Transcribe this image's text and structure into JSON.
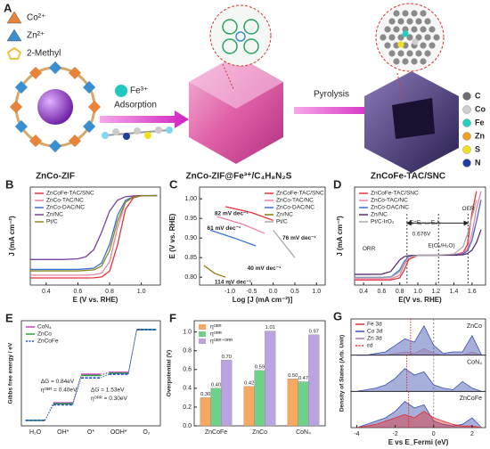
{
  "panel_a": {
    "label": "A",
    "ions": [
      {
        "name": "Co²⁺",
        "color": "#e8843a"
      },
      {
        "name": "Zn²⁺",
        "color": "#3a8fd0"
      },
      {
        "name": "2-Methyl",
        "color": "#f0c040"
      }
    ],
    "fe": "Fe³⁺",
    "steps": [
      "Adsorption",
      "Pyrolysis"
    ],
    "stages": [
      "ZnCo-ZIF",
      "ZnCo-ZIF@Fe³⁺/C₄H₈N₂S",
      "ZnCoFe-TAC/SNC"
    ],
    "elements": [
      {
        "name": "C",
        "color": "#6e6e6e"
      },
      {
        "name": "Co",
        "color": "#cfcfcf"
      },
      {
        "name": "Fe",
        "color": "#22d0c0"
      },
      {
        "name": "Zn",
        "color": "#f0a020"
      },
      {
        "name": "S",
        "color": "#f0e020"
      },
      {
        "name": "N",
        "color": "#2040a0"
      }
    ]
  },
  "chart_data": [
    {
      "type": "line",
      "label": "B",
      "x_label": "E (V vs. RHE)",
      "y_label": "J (mA cm⁻²)",
      "x": [
        0.3,
        0.5,
        0.6,
        0.65,
        0.7,
        0.75,
        0.8,
        0.85,
        0.9,
        0.95,
        1.0,
        1.1
      ],
      "xlim": [
        0.3,
        1.12
      ],
      "ylim": [
        -6.3,
        0.6
      ],
      "xticks": [
        0.4,
        0.6,
        0.8,
        {
          "value": 1.0,
          "label": "1.0"
        }
      ],
      "legend": "upper left",
      "series": [
        {
          "name": "ZnCoFe-TAC/SNC",
          "color": "#e8333a",
          "values": [
            -5.8,
            -5.8,
            -5.8,
            -5.8,
            -5.79,
            -5.73,
            -5.32,
            -3.47,
            -0.97,
            -0.15,
            -0.02,
            0
          ]
        },
        {
          "name": "ZnCo-TAC/NC",
          "color": "#f07fa0",
          "values": [
            -5.6,
            -5.6,
            -5.6,
            -5.6,
            -5.57,
            -5.45,
            -4.67,
            -2.25,
            -0.47,
            -0.07,
            -0.01,
            0
          ]
        },
        {
          "name": "ZnCo-DAC/NC",
          "color": "#3b6fd6",
          "values": [
            -5.2,
            -5.2,
            -5.19,
            -5.16,
            -5.11,
            -4.74,
            -3.44,
            -1.4,
            -0.34,
            -0.07,
            -0.01,
            0
          ]
        },
        {
          "name": "Zn/NC",
          "color": "#7a3fa0",
          "values": [
            -4.5,
            -4.5,
            -4.45,
            -4.31,
            -3.81,
            -2.57,
            -1.09,
            -0.32,
            -0.08,
            -0.02,
            0,
            0
          ]
        },
        {
          "name": "Pt/C",
          "color": "#8a8a20",
          "values": [
            -5.3,
            -5.3,
            -5.3,
            -5.27,
            -5.23,
            -4.96,
            -3.87,
            -1.8,
            -0.47,
            -0.1,
            -0.02,
            0
          ]
        }
      ]
    },
    {
      "type": "line",
      "label": "C",
      "x_label": "Log [J (mA cm⁻²)]",
      "y_label": "E (V vs. RHE)",
      "xlim": [
        -1.7,
        1.2
      ],
      "ylim": [
        0.78,
        1.03
      ],
      "xticks": [
        {
          "value": -1.0,
          "label": "-1.0"
        },
        -0.5,
        {
          "value": 0.0,
          "label": "0.0"
        },
        0.5,
        {
          "value": 1.0,
          "label": "1.0"
        }
      ],
      "yticks": [
        {
          "value": 0.8,
          "label": "0.80"
        },
        {
          "value": 0.85,
          "label": "0.85"
        },
        {
          "value": 0.9,
          "label": "0.90"
        },
        {
          "value": 0.95,
          "label": "0.95"
        },
        {
          "value": 1.0,
          "label": "1.00"
        }
      ],
      "legend": "upper right",
      "series": [
        {
          "name": "ZnCoFe-TAC/SNC",
          "color": "#e8333a",
          "x": [
            -1.1,
            -0.5,
            0.0
          ],
          "values": [
            0.98,
            0.965,
            0.945
          ]
        },
        {
          "name": "ZnCo-TAC/NC",
          "color": "#f07fa0",
          "x": [
            -1.3,
            -0.7,
            -0.2
          ],
          "values": [
            0.955,
            0.935,
            0.912
          ]
        },
        {
          "name": "ZnCo-DAC/NC",
          "color": "#3b6fd6",
          "x": [
            -1.45,
            -0.9,
            -0.4
          ],
          "values": [
            0.92,
            0.9,
            0.88
          ]
        },
        {
          "name": "Zn/NC",
          "color": "#8a7a10",
          "x": [
            -1.6,
            -1.35,
            -1.1
          ],
          "values": [
            0.83,
            0.81,
            0.8
          ]
        },
        {
          "name": "Pt/C",
          "color": "#aaaaaa",
          "x": [
            0.0,
            0.25,
            0.5
          ],
          "values": [
            0.92,
            0.885,
            0.85
          ]
        }
      ],
      "annotations": [
        {
          "text": "82 mV dec⁻¹",
          "color": "#e8333a"
        },
        {
          "text": "61 mV dec⁻¹",
          "color": "#3b6fd6"
        },
        {
          "text": "76 mV dec⁻¹",
          "color": "#999999"
        },
        {
          "text": "40 mV dec⁻¹",
          "color": "#6a5acd"
        },
        {
          "text": "114 mV dec⁻¹",
          "color": "#8a7a10"
        }
      ]
    },
    {
      "type": "line",
      "label": "D",
      "x_label": "E(V vs. RHE)",
      "y_label": "J (mA cm⁻²)",
      "x": [
        0.3,
        0.6,
        0.7,
        0.8,
        0.85,
        0.9,
        1.0,
        1.2,
        1.4,
        1.5,
        1.55,
        1.6,
        1.65,
        1.7
      ],
      "xlim": [
        0.3,
        1.75
      ],
      "ylim": [
        -7,
        16
      ],
      "xticks": [
        0.4,
        0.6,
        0.8,
        {
          "value": 1.0,
          "label": "1.0"
        },
        1.2,
        1.4,
        1.6
      ],
      "legend": "upper left",
      "reference_lines": [
        0.88,
        1.23,
        1.556
      ],
      "series": [
        {
          "name": "ZnCoFe-TAC/SNC",
          "color": "#e8333a",
          "values": [
            -5.8,
            -5.8,
            -5.79,
            -5.32,
            -3.47,
            -0.97,
            -0.02,
            0,
            0.1,
            0.6,
            2.5,
            10,
            15,
            null
          ]
        },
        {
          "name": "ZnCo-TAC/NC",
          "color": "#f07fa0",
          "values": [
            -5.6,
            -5.6,
            -5.57,
            -4.67,
            -2.25,
            -0.47,
            -0.01,
            0,
            0.1,
            0.4,
            1.5,
            5,
            11,
            15
          ]
        },
        {
          "name": "ZnCo-DAC/NC",
          "color": "#3b6fd6",
          "values": [
            -5.2,
            -5.19,
            -5.11,
            -3.44,
            -1.4,
            -0.34,
            -0.01,
            0,
            0.05,
            0.3,
            1,
            3.5,
            8,
            13
          ]
        },
        {
          "name": "Zn/NC",
          "color": "#5a2f70",
          "values": [
            -4.5,
            -4.45,
            -3.81,
            -1.09,
            -0.32,
            -0.08,
            0,
            0,
            0.02,
            0.1,
            0.4,
            1.2,
            3,
            6
          ]
        },
        {
          "name": "Pt/C-IrO₂",
          "color": "#aaaaaa",
          "values": [
            -5.3,
            -5.3,
            -5.23,
            -3.87,
            -1.8,
            -0.47,
            -0.02,
            0,
            0.3,
            2,
            5,
            9,
            13,
            null
          ]
        }
      ],
      "annotations": [
        {
          "text": "OER"
        },
        {
          "text": "ORR"
        },
        {
          "text": "E(O₂/H₂O)"
        },
        {
          "text": "E=Eⱼ₌₁₀-E₁/₂"
        },
        {
          "text": "0.676V"
        }
      ]
    },
    {
      "type": "step",
      "label": "E",
      "y_label": "Gibbs free energy / eV",
      "categories": [
        "H₂O",
        "OH*",
        "O*",
        "OOH*",
        "O₂"
      ],
      "ylim": [
        -0.3,
        5.4
      ],
      "legend": "upper left",
      "series": [
        {
          "name": "CoN₄",
          "color": "#d040c0",
          "values": [
            0,
            0.95,
            2.5,
            2.6,
            4.92
          ]
        },
        {
          "name": "ZnCo",
          "color": "#2aa040",
          "values": [
            0,
            0.9,
            2.43,
            2.55,
            4.92
          ]
        },
        {
          "name": "ZnCoFe",
          "color": "#2050d0",
          "dashed": true,
          "values": [
            0,
            0.84,
            2.3,
            2.5,
            4.92
          ]
        }
      ],
      "annotations": [
        {
          "text": "ΔG = 0.84eV"
        },
        {
          "text": "ηᴼᴱᴿ = 0.40eV"
        },
        {
          "text": "ΔG = 1.53eV"
        },
        {
          "text": "ηᴼᴿᴿ = 0.30eV"
        }
      ]
    },
    {
      "type": "bar",
      "label": "F",
      "y_label": "Overpotential (V)",
      "categories": [
        "ZnCoFe",
        "ZnCo",
        "CoN₄"
      ],
      "ylim": [
        0,
        1.12
      ],
      "yticks": [
        {
          "value": 0,
          "label": "0.0"
        },
        0.2,
        0.4,
        0.6,
        0.8,
        {
          "value": 1,
          "label": "1.0"
        }
      ],
      "legend": "upper left",
      "series": [
        {
          "name": "ηᴼᴱᴿ",
          "color": "#f5a860",
          "values": [
            0.3,
            0.42,
            0.5
          ],
          "value_labels": [
            "0.30",
            "0.42",
            "0.50"
          ]
        },
        {
          "name": "ηᴼᴿᴿ",
          "color": "#6fd08a",
          "values": [
            0.4,
            0.59,
            0.47
          ],
          "value_labels": [
            "0.40",
            "0.59",
            "0.47"
          ]
        },
        {
          "name": "ηᴼᴱᴿ⁺ᴼᴿᴿ",
          "color": "#b9a4e0",
          "values": [
            0.7,
            1.01,
            0.97
          ],
          "value_labels": [
            "0.70",
            "1.01",
            "0.97"
          ]
        }
      ]
    },
    {
      "type": "dos",
      "label": "G",
      "x_label": "E vs E_Fermi (eV)",
      "y_label": "Density of States (Arb. Unit)",
      "x": [
        -4,
        -3.5,
        -3,
        -2.5,
        -2,
        -1.5,
        -1,
        -0.5,
        0,
        0.5,
        1,
        1.5,
        2,
        2.5
      ],
      "xlim": [
        -4.3,
        2.7
      ],
      "ylim": [
        0,
        1
      ],
      "xticks": [
        -4,
        -2,
        0,
        2
      ],
      "legend": "upper left",
      "legend_items": [
        {
          "name": "Fe 3d",
          "color": "#e03030"
        },
        {
          "name": "Co 3d",
          "color": "#3a4fb0"
        },
        {
          "name": "Zn 3d",
          "color": "#9a7ab0"
        },
        {
          "name": "εd",
          "color": "#e03030",
          "dashed": true
        }
      ],
      "panels": [
        {
          "label": "ZnCo",
          "epsilon_d": -1.2,
          "series": [
            {
              "color": "#3a4fb0",
              "values": [
                0,
                0,
                0.05,
                0.1,
                0.3,
                0.5,
                0.4,
                0.9,
                0.3,
                0.05,
                0.1,
                0.1,
                0.6,
                0
              ]
            },
            {
              "color": "#9a7ab0",
              "values": [
                0,
                0,
                0,
                0,
                0.05,
                0.1,
                0.05,
                0.2,
                0.05,
                0,
                0,
                0,
                0.1,
                0
              ]
            }
          ]
        },
        {
          "label": "CoN₄",
          "epsilon_d": -1.4,
          "series": [
            {
              "color": "#3a4fb0",
              "values": [
                0,
                0.05,
                0.1,
                0.2,
                0.4,
                0.7,
                0.5,
                0.6,
                0.2,
                0.1,
                0.05,
                0.3,
                0.1,
                0
              ]
            }
          ]
        },
        {
          "label": "ZnCoFe",
          "epsilon_d": -1.3,
          "series": [
            {
              "color": "#3a4fb0",
              "values": [
                0,
                0.1,
                0.2,
                0.3,
                0.5,
                0.8,
                0.6,
                0.7,
                0.2,
                0.1,
                0.05,
                0.1,
                0.3,
                0
              ]
            },
            {
              "color": "#e03030",
              "values": [
                0,
                0.05,
                0.1,
                0.2,
                0.3,
                0.4,
                0.3,
                0.5,
                0.3,
                0.2,
                0.1,
                0.05,
                0.05,
                0
              ]
            }
          ]
        }
      ]
    }
  ]
}
